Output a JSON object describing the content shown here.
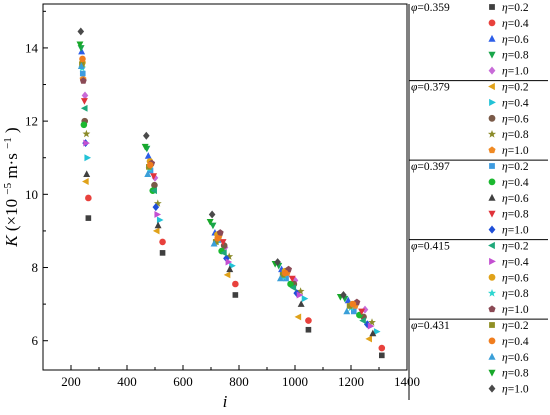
{
  "chart_data": {
    "type": "scatter",
    "xlabel_main": "i",
    "ylabel_main": "K",
    "ylabel_unit": "(×10",
    "ylabel_exp": "−5",
    "ylabel_unit2": " m·s",
    "ylabel_exp2": "−1",
    "ylabel_close": ")",
    "xlim": [
      100,
      1400
    ],
    "ylim": [
      5.2,
      15.2
    ],
    "xticks": [
      "200",
      "400",
      "600",
      "800",
      "1000",
      "1200",
      "1400"
    ],
    "yticks": [
      "6",
      "8",
      "10",
      "12",
      "14"
    ],
    "phi_symbol": "φ",
    "eta_symbol": "η",
    "groups": [
      {
        "phi": "=0.359",
        "series": [
          {
            "name": "=0.2",
            "color": "#3f3f3f",
            "marker": "square",
            "x": [
              262,
              527,
              787,
              1048,
              1310
            ],
            "y": [
              9.35,
              8.4,
              7.25,
              6.3,
              5.6
            ]
          },
          {
            "name": "=0.4",
            "color": "#e8413c",
            "marker": "circle",
            "x": [
              262,
              527,
              787,
              1048,
              1310
            ],
            "y": [
              9.9,
              8.7,
              7.55,
              6.55,
              5.8
            ]
          },
          {
            "name": "=0.6",
            "color": "#2d5ee8",
            "marker": "triangle-up",
            "x": [
              238,
              476,
              714,
              952,
              1190
            ],
            "y": [
              13.9,
              11.05,
              8.95,
              7.95,
              7.1
            ]
          },
          {
            "name": "=0.8",
            "color": "#19a64a",
            "marker": "triangle-down",
            "x": [
              236,
              471,
              707,
              942,
              1178
            ],
            "y": [
              14.0,
              11.25,
              9.15,
              8.05,
              7.15
            ]
          },
          {
            "name": "=1.0",
            "color": "#c86bd8",
            "marker": "diamond",
            "x": [
              250,
              500,
              750,
              1000,
              1250
            ],
            "y": [
              12.7,
              10.45,
              8.55,
              7.65,
              6.85
            ]
          }
        ]
      },
      {
        "phi": "=0.379",
        "series": [
          {
            "name": "=0.2",
            "color": "#e0a21a",
            "marker": "triangle-left",
            "x": [
              253,
              506,
              759,
              1012,
              1265
            ],
            "y": [
              10.35,
              9.0,
              7.8,
              6.65,
              6.05
            ]
          },
          {
            "name": "=0.4",
            "color": "#22c2d6",
            "marker": "triangle-right",
            "x": [
              258,
              517,
              775,
              1034,
              1292
            ],
            "y": [
              11.0,
              9.3,
              8.05,
              7.15,
              6.25
            ]
          },
          {
            "name": "=0.6",
            "color": "#7a5a48",
            "marker": "circle",
            "x": [
              249,
              498,
              747,
              996,
              1245
            ],
            "y": [
              12.0,
              10.25,
              8.6,
              7.55,
              6.65
            ]
          },
          {
            "name": "=0.8",
            "color": "#8b8b2a",
            "marker": "star",
            "x": [
              255,
              510,
              765,
              1020,
              1275
            ],
            "y": [
              11.65,
              9.75,
              8.3,
              7.35,
              6.5
            ]
          },
          {
            "name": "=1.0",
            "color": "#f08a24",
            "marker": "pentagon",
            "x": [
              243,
              486,
              729,
              972,
              1215
            ],
            "y": [
              13.15,
              10.85,
              8.85,
              7.85,
              6.95
            ]
          }
        ]
      },
      {
        "phi": "=0.397",
        "series": [
          {
            "name": "=0.2",
            "color": "#3d9be0",
            "marker": "square",
            "x": [
              242,
              484,
              726,
              968,
              1210
            ],
            "y": [
              13.3,
              10.65,
              8.75,
              7.7,
              6.8
            ]
          },
          {
            "name": "=0.4",
            "color": "#1bb82f",
            "marker": "circle",
            "x": [
              246,
              492,
              738,
              984,
              1230
            ],
            "y": [
              11.9,
              10.1,
              8.45,
              7.55,
              6.7
            ]
          },
          {
            "name": "=0.6",
            "color": "#404040",
            "marker": "triangle-up",
            "x": [
              256,
              511,
              767,
              1022,
              1278
            ],
            "y": [
              10.55,
              9.15,
              7.95,
              7.0,
              6.2
            ]
          },
          {
            "name": "=0.8",
            "color": "#e0333a",
            "marker": "triangle-down",
            "x": [
              248,
              495,
              743,
              990,
              1238
            ],
            "y": [
              12.55,
              10.5,
              8.7,
              7.7,
              6.8
            ]
          },
          {
            "name": "=1.0",
            "color": "#1f4fd8",
            "marker": "diamond",
            "x": [
              252,
              503,
              755,
              1006,
              1258
            ],
            "y": [
              11.4,
              9.65,
              8.25,
              7.3,
              6.45
            ]
          }
        ]
      },
      {
        "phi": "=0.415",
        "series": [
          {
            "name": "=0.2",
            "color": "#1ea87a",
            "marker": "triangle-left",
            "x": [
              249,
              497,
              746,
              994,
              1243
            ],
            "y": [
              12.35,
              10.1,
              8.4,
              7.45,
              6.55
            ]
          },
          {
            "name": "=0.4",
            "color": "#c34fd1",
            "marker": "triangle-right",
            "x": [
              254,
              508,
              762,
              1016,
              1270
            ],
            "y": [
              11.4,
              9.45,
              8.15,
              7.25,
              6.4
            ]
          },
          {
            "name": "=0.6",
            "color": "#e0a21a",
            "marker": "circle",
            "x": [
              241,
              482,
              723,
              964,
              1205
            ],
            "y": [
              13.6,
              10.9,
              8.9,
              7.9,
              7.0
            ]
          },
          {
            "name": "=0.8",
            "color": "#2ed6d0",
            "marker": "star",
            "x": [
              240,
              480,
              720,
              960,
              1200
            ],
            "y": [
              13.45,
              10.7,
              8.7,
              7.75,
              6.9
            ]
          },
          {
            "name": "=1.0",
            "color": "#8b4a55",
            "marker": "pentagon",
            "x": [
              244,
              488,
              733,
              977,
              1221
            ],
            "y": [
              13.1,
              10.85,
              8.95,
              7.95,
              7.05
            ]
          }
        ]
      },
      {
        "phi": "=0.431",
        "series": [
          {
            "name": "=0.2",
            "color": "#8f8f24",
            "marker": "square",
            "x": [
              239,
              478,
              717,
              956,
              1195
            ],
            "y": [
              13.55,
              10.75,
              8.7,
              7.8,
              6.95
            ]
          },
          {
            "name": "=0.4",
            "color": "#f07d1e",
            "marker": "circle",
            "x": [
              241,
              483,
              724,
              965,
              1207
            ],
            "y": [
              13.7,
              10.8,
              8.8,
              7.85,
              7.0
            ]
          },
          {
            "name": "=0.6",
            "color": "#3a9fd8",
            "marker": "triangle-up",
            "x": [
              237,
              474,
              711,
              948,
              1185
            ],
            "y": [
              13.5,
              10.55,
              8.65,
              7.7,
              6.8
            ]
          },
          {
            "name": "=0.8",
            "color": "#18a82a",
            "marker": "triangle-down",
            "x": [
              232,
              465,
              697,
              929,
              1162
            ],
            "y": [
              14.1,
              11.3,
              9.25,
              8.1,
              7.2
            ]
          },
          {
            "name": "=1.0",
            "color": "#4a4a4a",
            "marker": "diamond",
            "x": [
              235,
              469,
              704,
              938,
              1173
            ],
            "y": [
              14.45,
              11.6,
              9.45,
              8.15,
              7.25
            ]
          }
        ]
      }
    ]
  }
}
